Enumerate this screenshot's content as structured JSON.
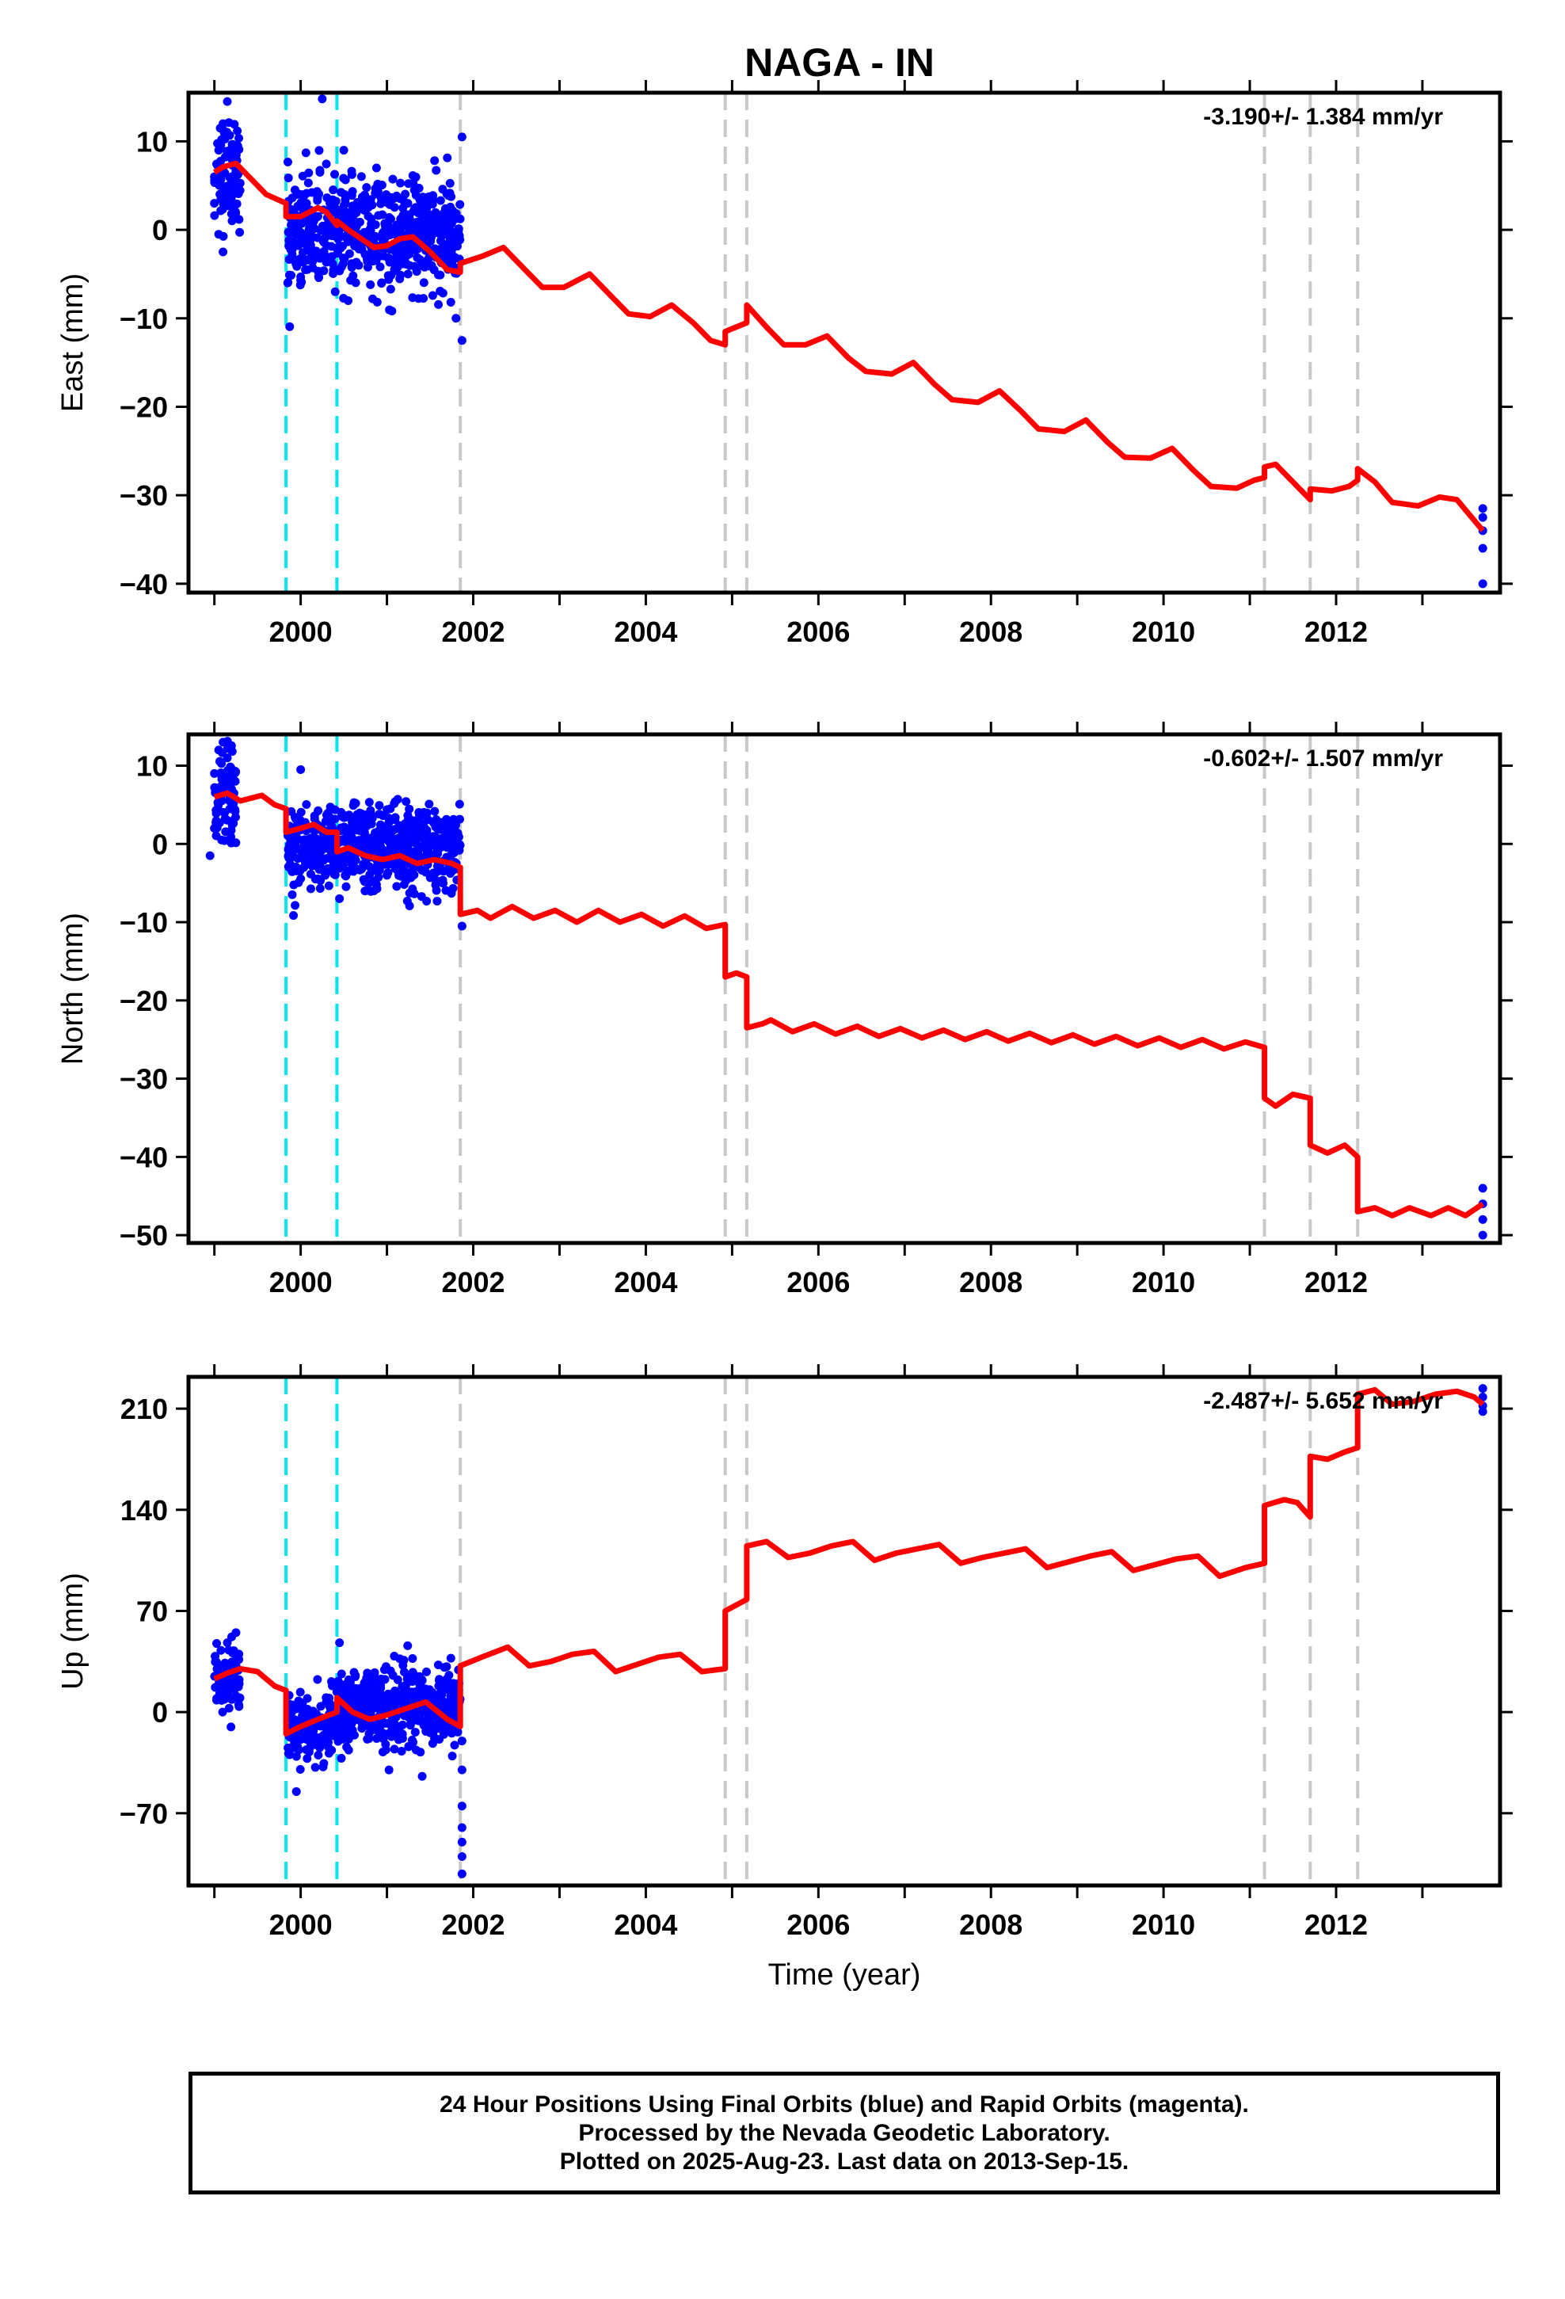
{
  "title": "NAGA - IN",
  "xlabel": "Time (year)",
  "x_ticks": [
    "2000",
    "2002",
    "2004",
    "2006",
    "2008",
    "2010",
    "2012"
  ],
  "footer": {
    "line1": "24 Hour Positions Using Final Orbits (blue) and Rapid Orbits (magenta).",
    "line2": "Processed by the Nevada Geodetic Laboratory.",
    "line3": "Plotted on 2025-Aug-23. Last data on 2013-Sep-15."
  },
  "colors": {
    "data_points": "#0000ff",
    "model_line": "#ff0000",
    "equipment_change": "#00e5ee",
    "other_event": "#c8c8c8"
  },
  "chart_data": [
    {
      "type": "scatter",
      "ylabel": "East (mm)",
      "rate_label": "-3.190+/- 1.384 mm/yr",
      "xlim": [
        1998.7,
        2013.9
      ],
      "ylim": [
        -41,
        15.5
      ],
      "yticks": [
        10,
        0,
        -10,
        -20,
        -30,
        -40
      ],
      "cyan_lines": [
        1999.83,
        2000.42
      ],
      "gray_lines": [
        2001.85,
        2004.92,
        2005.17,
        2011.17,
        2011.7,
        2012.25
      ],
      "model": [
        [
          1999.0,
          6.5
        ],
        [
          1999.1,
          7.1
        ],
        [
          1999.25,
          7.5
        ],
        [
          1999.4,
          6.0
        ],
        [
          1999.6,
          4.0
        ],
        [
          1999.83,
          3.0
        ],
        [
          1999.83,
          1.5
        ],
        [
          2000.0,
          1.5
        ],
        [
          2000.1,
          2.0
        ],
        [
          2000.2,
          2.5
        ],
        [
          2000.3,
          2.0
        ],
        [
          2000.42,
          0.5
        ],
        [
          2000.42,
          1.0
        ],
        [
          2000.55,
          0.0
        ],
        [
          2000.7,
          -1.0
        ],
        [
          2000.85,
          -2.0
        ],
        [
          2001.0,
          -1.8
        ],
        [
          2001.15,
          -1.0
        ],
        [
          2001.3,
          -0.8
        ],
        [
          2001.5,
          -2.5
        ],
        [
          2001.7,
          -4.5
        ],
        [
          2001.85,
          -4.8
        ],
        [
          2001.85,
          -3.8
        ],
        [
          2002.1,
          -3.0
        ],
        [
          2002.35,
          -2.0
        ],
        [
          2002.6,
          -4.5
        ],
        [
          2002.8,
          -6.5
        ],
        [
          2003.05,
          -6.5
        ],
        [
          2003.35,
          -5.0
        ],
        [
          2003.6,
          -7.5
        ],
        [
          2003.8,
          -9.5
        ],
        [
          2004.05,
          -9.8
        ],
        [
          2004.3,
          -8.5
        ],
        [
          2004.55,
          -10.5
        ],
        [
          2004.75,
          -12.5
        ],
        [
          2004.92,
          -13.0
        ],
        [
          2004.92,
          -11.5
        ],
        [
          2005.17,
          -10.5
        ],
        [
          2005.17,
          -8.5
        ],
        [
          2005.4,
          -11.0
        ],
        [
          2005.6,
          -13.0
        ],
        [
          2005.85,
          -13.0
        ],
        [
          2006.1,
          -12.0
        ],
        [
          2006.35,
          -14.5
        ],
        [
          2006.55,
          -16.0
        ],
        [
          2006.85,
          -16.3
        ],
        [
          2007.1,
          -15.0
        ],
        [
          2007.35,
          -17.5
        ],
        [
          2007.55,
          -19.2
        ],
        [
          2007.85,
          -19.5
        ],
        [
          2008.1,
          -18.2
        ],
        [
          2008.35,
          -20.5
        ],
        [
          2008.55,
          -22.5
        ],
        [
          2008.85,
          -22.8
        ],
        [
          2009.1,
          -21.5
        ],
        [
          2009.35,
          -24.0
        ],
        [
          2009.55,
          -25.7
        ],
        [
          2009.85,
          -25.8
        ],
        [
          2010.1,
          -24.7
        ],
        [
          2010.35,
          -27.2
        ],
        [
          2010.55,
          -29.0
        ],
        [
          2010.85,
          -29.2
        ],
        [
          2011.05,
          -28.3
        ],
        [
          2011.17,
          -28.0
        ],
        [
          2011.17,
          -26.8
        ],
        [
          2011.3,
          -26.5
        ],
        [
          2011.5,
          -28.5
        ],
        [
          2011.7,
          -30.5
        ],
        [
          2011.7,
          -29.3
        ],
        [
          2011.95,
          -29.5
        ],
        [
          2012.15,
          -29.0
        ],
        [
          2012.25,
          -28.3
        ],
        [
          2012.25,
          -27.0
        ],
        [
          2012.45,
          -28.5
        ],
        [
          2012.65,
          -30.8
        ],
        [
          2012.95,
          -31.2
        ],
        [
          2013.2,
          -30.2
        ],
        [
          2013.4,
          -30.5
        ],
        [
          2013.7,
          -34.0
        ]
      ],
      "points": [
        [
          1999.0,
          6
        ],
        [
          1999.05,
          9
        ],
        [
          1999.1,
          12
        ],
        [
          1999.15,
          14.5
        ],
        [
          1999.1,
          -2.5
        ],
        [
          1999.05,
          -0.5
        ],
        [
          1999.2,
          8
        ],
        [
          1999.0,
          3
        ],
        [
          1999.15,
          4
        ],
        [
          1999.25,
          6
        ],
        [
          2000.25,
          14.8
        ],
        [
          2000.5,
          9
        ],
        [
          2001.87,
          10.5
        ],
        [
          2001.87,
          -12.5
        ],
        [
          2001.8,
          -10
        ],
        [
          2000.4,
          -7
        ],
        [
          2000.55,
          -8
        ],
        [
          1999.85,
          -6
        ],
        [
          2013.7,
          -31.5
        ],
        [
          2013.7,
          -34
        ],
        [
          2013.7,
          -36
        ],
        [
          2013.7,
          -40
        ],
        [
          2013.7,
          -32.5
        ]
      ],
      "clusters": [
        [
          1999.0,
          1999.3,
          6.5,
          3.0,
          90
        ],
        [
          1999.85,
          2001.85,
          -0.5,
          3.0,
          650
        ]
      ]
    },
    {
      "type": "scatter",
      "ylabel": "North (mm)",
      "rate_label": "-0.602+/- 1.507 mm/yr",
      "xlim": [
        1998.7,
        2013.9
      ],
      "ylim": [
        -51,
        14
      ],
      "yticks": [
        10,
        0,
        -10,
        -20,
        -30,
        -40,
        -50
      ],
      "cyan_lines": [
        1999.83,
        2000.42
      ],
      "gray_lines": [
        2001.85,
        2004.92,
        2005.17,
        2011.17,
        2011.7,
        2012.25
      ],
      "model": [
        [
          1999.0,
          6.0
        ],
        [
          1999.15,
          6.5
        ],
        [
          1999.3,
          5.5
        ],
        [
          1999.55,
          6.2
        ],
        [
          1999.7,
          5.0
        ],
        [
          1999.83,
          4.5
        ],
        [
          1999.83,
          1.5
        ],
        [
          2000.0,
          2.0
        ],
        [
          2000.15,
          2.5
        ],
        [
          2000.3,
          1.5
        ],
        [
          2000.42,
          1.5
        ],
        [
          2000.42,
          -1.0
        ],
        [
          2000.55,
          -0.5
        ],
        [
          2000.75,
          -1.5
        ],
        [
          2000.95,
          -2.0
        ],
        [
          2001.15,
          -1.5
        ],
        [
          2001.35,
          -2.5
        ],
        [
          2001.55,
          -2.0
        ],
        [
          2001.75,
          -2.5
        ],
        [
          2001.85,
          -3.0
        ],
        [
          2001.85,
          -9.0
        ],
        [
          2002.05,
          -8.5
        ],
        [
          2002.2,
          -9.5
        ],
        [
          2002.45,
          -8.0
        ],
        [
          2002.7,
          -9.5
        ],
        [
          2002.95,
          -8.5
        ],
        [
          2003.2,
          -10.0
        ],
        [
          2003.45,
          -8.5
        ],
        [
          2003.7,
          -10.0
        ],
        [
          2003.95,
          -9.0
        ],
        [
          2004.2,
          -10.5
        ],
        [
          2004.45,
          -9.2
        ],
        [
          2004.7,
          -10.8
        ],
        [
          2004.92,
          -10.3
        ],
        [
          2004.92,
          -17.0
        ],
        [
          2005.05,
          -16.5
        ],
        [
          2005.17,
          -17.0
        ],
        [
          2005.17,
          -23.5
        ],
        [
          2005.35,
          -23.0
        ],
        [
          2005.45,
          -22.5
        ],
        [
          2005.7,
          -24.0
        ],
        [
          2005.95,
          -23.0
        ],
        [
          2006.2,
          -24.3
        ],
        [
          2006.45,
          -23.3
        ],
        [
          2006.7,
          -24.6
        ],
        [
          2006.95,
          -23.6
        ],
        [
          2007.2,
          -24.8
        ],
        [
          2007.45,
          -23.8
        ],
        [
          2007.7,
          -25.0
        ],
        [
          2007.95,
          -24.0
        ],
        [
          2008.2,
          -25.2
        ],
        [
          2008.45,
          -24.2
        ],
        [
          2008.7,
          -25.4
        ],
        [
          2008.95,
          -24.4
        ],
        [
          2009.2,
          -25.6
        ],
        [
          2009.45,
          -24.6
        ],
        [
          2009.7,
          -25.8
        ],
        [
          2009.95,
          -24.8
        ],
        [
          2010.2,
          -26.0
        ],
        [
          2010.45,
          -25.0
        ],
        [
          2010.7,
          -26.2
        ],
        [
          2010.95,
          -25.3
        ],
        [
          2011.17,
          -26.0
        ],
        [
          2011.17,
          -32.5
        ],
        [
          2011.3,
          -33.5
        ],
        [
          2011.5,
          -32.0
        ],
        [
          2011.7,
          -32.5
        ],
        [
          2011.7,
          -38.5
        ],
        [
          2011.9,
          -39.5
        ],
        [
          2012.1,
          -38.5
        ],
        [
          2012.25,
          -40.0
        ],
        [
          2012.25,
          -47.0
        ],
        [
          2012.45,
          -46.5
        ],
        [
          2012.65,
          -47.5
        ],
        [
          2012.85,
          -46.5
        ],
        [
          2013.1,
          -47.5
        ],
        [
          2013.3,
          -46.5
        ],
        [
          2013.5,
          -47.5
        ],
        [
          2013.7,
          -46.0
        ]
      ],
      "points": [
        [
          1999.05,
          12
        ],
        [
          1999.1,
          13
        ],
        [
          1999.15,
          11
        ],
        [
          1998.95,
          -1.5
        ],
        [
          1999.0,
          2
        ],
        [
          1999.2,
          7
        ],
        [
          1999.0,
          9
        ],
        [
          2000.0,
          9.5
        ],
        [
          2000.45,
          -7
        ],
        [
          2001.87,
          -10.5
        ],
        [
          2013.7,
          -44
        ],
        [
          2013.7,
          -46
        ],
        [
          2013.7,
          -48
        ],
        [
          2013.7,
          -50
        ]
      ],
      "clusters": [
        [
          1999.0,
          1999.25,
          6.0,
          2.8,
          80
        ],
        [
          1999.85,
          2001.85,
          -0.5,
          2.6,
          650
        ]
      ]
    },
    {
      "type": "scatter",
      "ylabel": "Up (mm)",
      "rate_label": "-2.487+/- 5.652 mm/yr",
      "xlim": [
        1998.7,
        2013.9
      ],
      "ylim": [
        -120,
        232
      ],
      "yticks": [
        210,
        140,
        70,
        0,
        -70
      ],
      "cyan_lines": [
        1999.83,
        2000.42
      ],
      "gray_lines": [
        2001.85,
        2004.92,
        2005.17,
        2011.17,
        2011.7,
        2012.25
      ],
      "model": [
        [
          1999.0,
          23
        ],
        [
          1999.15,
          27
        ],
        [
          1999.3,
          30
        ],
        [
          1999.5,
          28
        ],
        [
          1999.7,
          18
        ],
        [
          1999.83,
          15
        ],
        [
          1999.83,
          -15
        ],
        [
          2000.0,
          -10
        ],
        [
          2000.2,
          -5
        ],
        [
          2000.42,
          0
        ],
        [
          2000.42,
          10
        ],
        [
          2000.6,
          0
        ],
        [
          2000.8,
          -5
        ],
        [
          2001.0,
          -2
        ],
        [
          2001.2,
          2
        ],
        [
          2001.45,
          7
        ],
        [
          2001.7,
          -5
        ],
        [
          2001.85,
          -10
        ],
        [
          2001.85,
          32
        ],
        [
          2002.1,
          38
        ],
        [
          2002.4,
          45
        ],
        [
          2002.65,
          32
        ],
        [
          2002.9,
          35
        ],
        [
          2003.15,
          40
        ],
        [
          2003.4,
          42
        ],
        [
          2003.65,
          28
        ],
        [
          2003.9,
          33
        ],
        [
          2004.15,
          38
        ],
        [
          2004.4,
          40
        ],
        [
          2004.65,
          28
        ],
        [
          2004.92,
          30
        ],
        [
          2004.92,
          70
        ],
        [
          2005.17,
          78
        ],
        [
          2005.17,
          115
        ],
        [
          2005.4,
          118
        ],
        [
          2005.65,
          107
        ],
        [
          2005.9,
          110
        ],
        [
          2006.15,
          115
        ],
        [
          2006.4,
          118
        ],
        [
          2006.65,
          105
        ],
        [
          2006.9,
          110
        ],
        [
          2007.15,
          113
        ],
        [
          2007.4,
          116
        ],
        [
          2007.65,
          103
        ],
        [
          2007.9,
          107
        ],
        [
          2008.15,
          110
        ],
        [
          2008.4,
          113
        ],
        [
          2008.65,
          100
        ],
        [
          2008.9,
          104
        ],
        [
          2009.15,
          108
        ],
        [
          2009.4,
          111
        ],
        [
          2009.65,
          98
        ],
        [
          2009.9,
          102
        ],
        [
          2010.15,
          106
        ],
        [
          2010.4,
          108
        ],
        [
          2010.65,
          94
        ],
        [
          2010.95,
          100
        ],
        [
          2011.17,
          103
        ],
        [
          2011.17,
          143
        ],
        [
          2011.4,
          147
        ],
        [
          2011.55,
          145
        ],
        [
          2011.7,
          135
        ],
        [
          2011.7,
          177
        ],
        [
          2011.9,
          175
        ],
        [
          2012.1,
          180
        ],
        [
          2012.25,
          183
        ],
        [
          2012.25,
          220
        ],
        [
          2012.45,
          223
        ],
        [
          2012.65,
          213
        ],
        [
          2012.9,
          215
        ],
        [
          2013.15,
          220
        ],
        [
          2013.4,
          222
        ],
        [
          2013.6,
          218
        ],
        [
          2013.7,
          213
        ]
      ],
      "points": [
        [
          1999.15,
          48
        ],
        [
          1999.2,
          52
        ],
        [
          1999.25,
          55
        ],
        [
          2000.45,
          48
        ],
        [
          1999.95,
          -55
        ],
        [
          2001.87,
          -40
        ],
        [
          2001.87,
          -65
        ],
        [
          2001.87,
          -80
        ],
        [
          2001.87,
          -90
        ],
        [
          2001.87,
          -100
        ],
        [
          2001.87,
          -112
        ],
        [
          2001.87,
          -20
        ],
        [
          2013.7,
          212
        ],
        [
          2013.7,
          218
        ],
        [
          2013.7,
          224
        ],
        [
          2013.7,
          208
        ]
      ],
      "clusters": [
        [
          1999.0,
          1999.3,
          22,
          11,
          80
        ],
        [
          1999.85,
          2000.42,
          -10,
          12,
          160
        ],
        [
          2000.42,
          2001.85,
          2,
          14,
          500
        ]
      ]
    }
  ]
}
